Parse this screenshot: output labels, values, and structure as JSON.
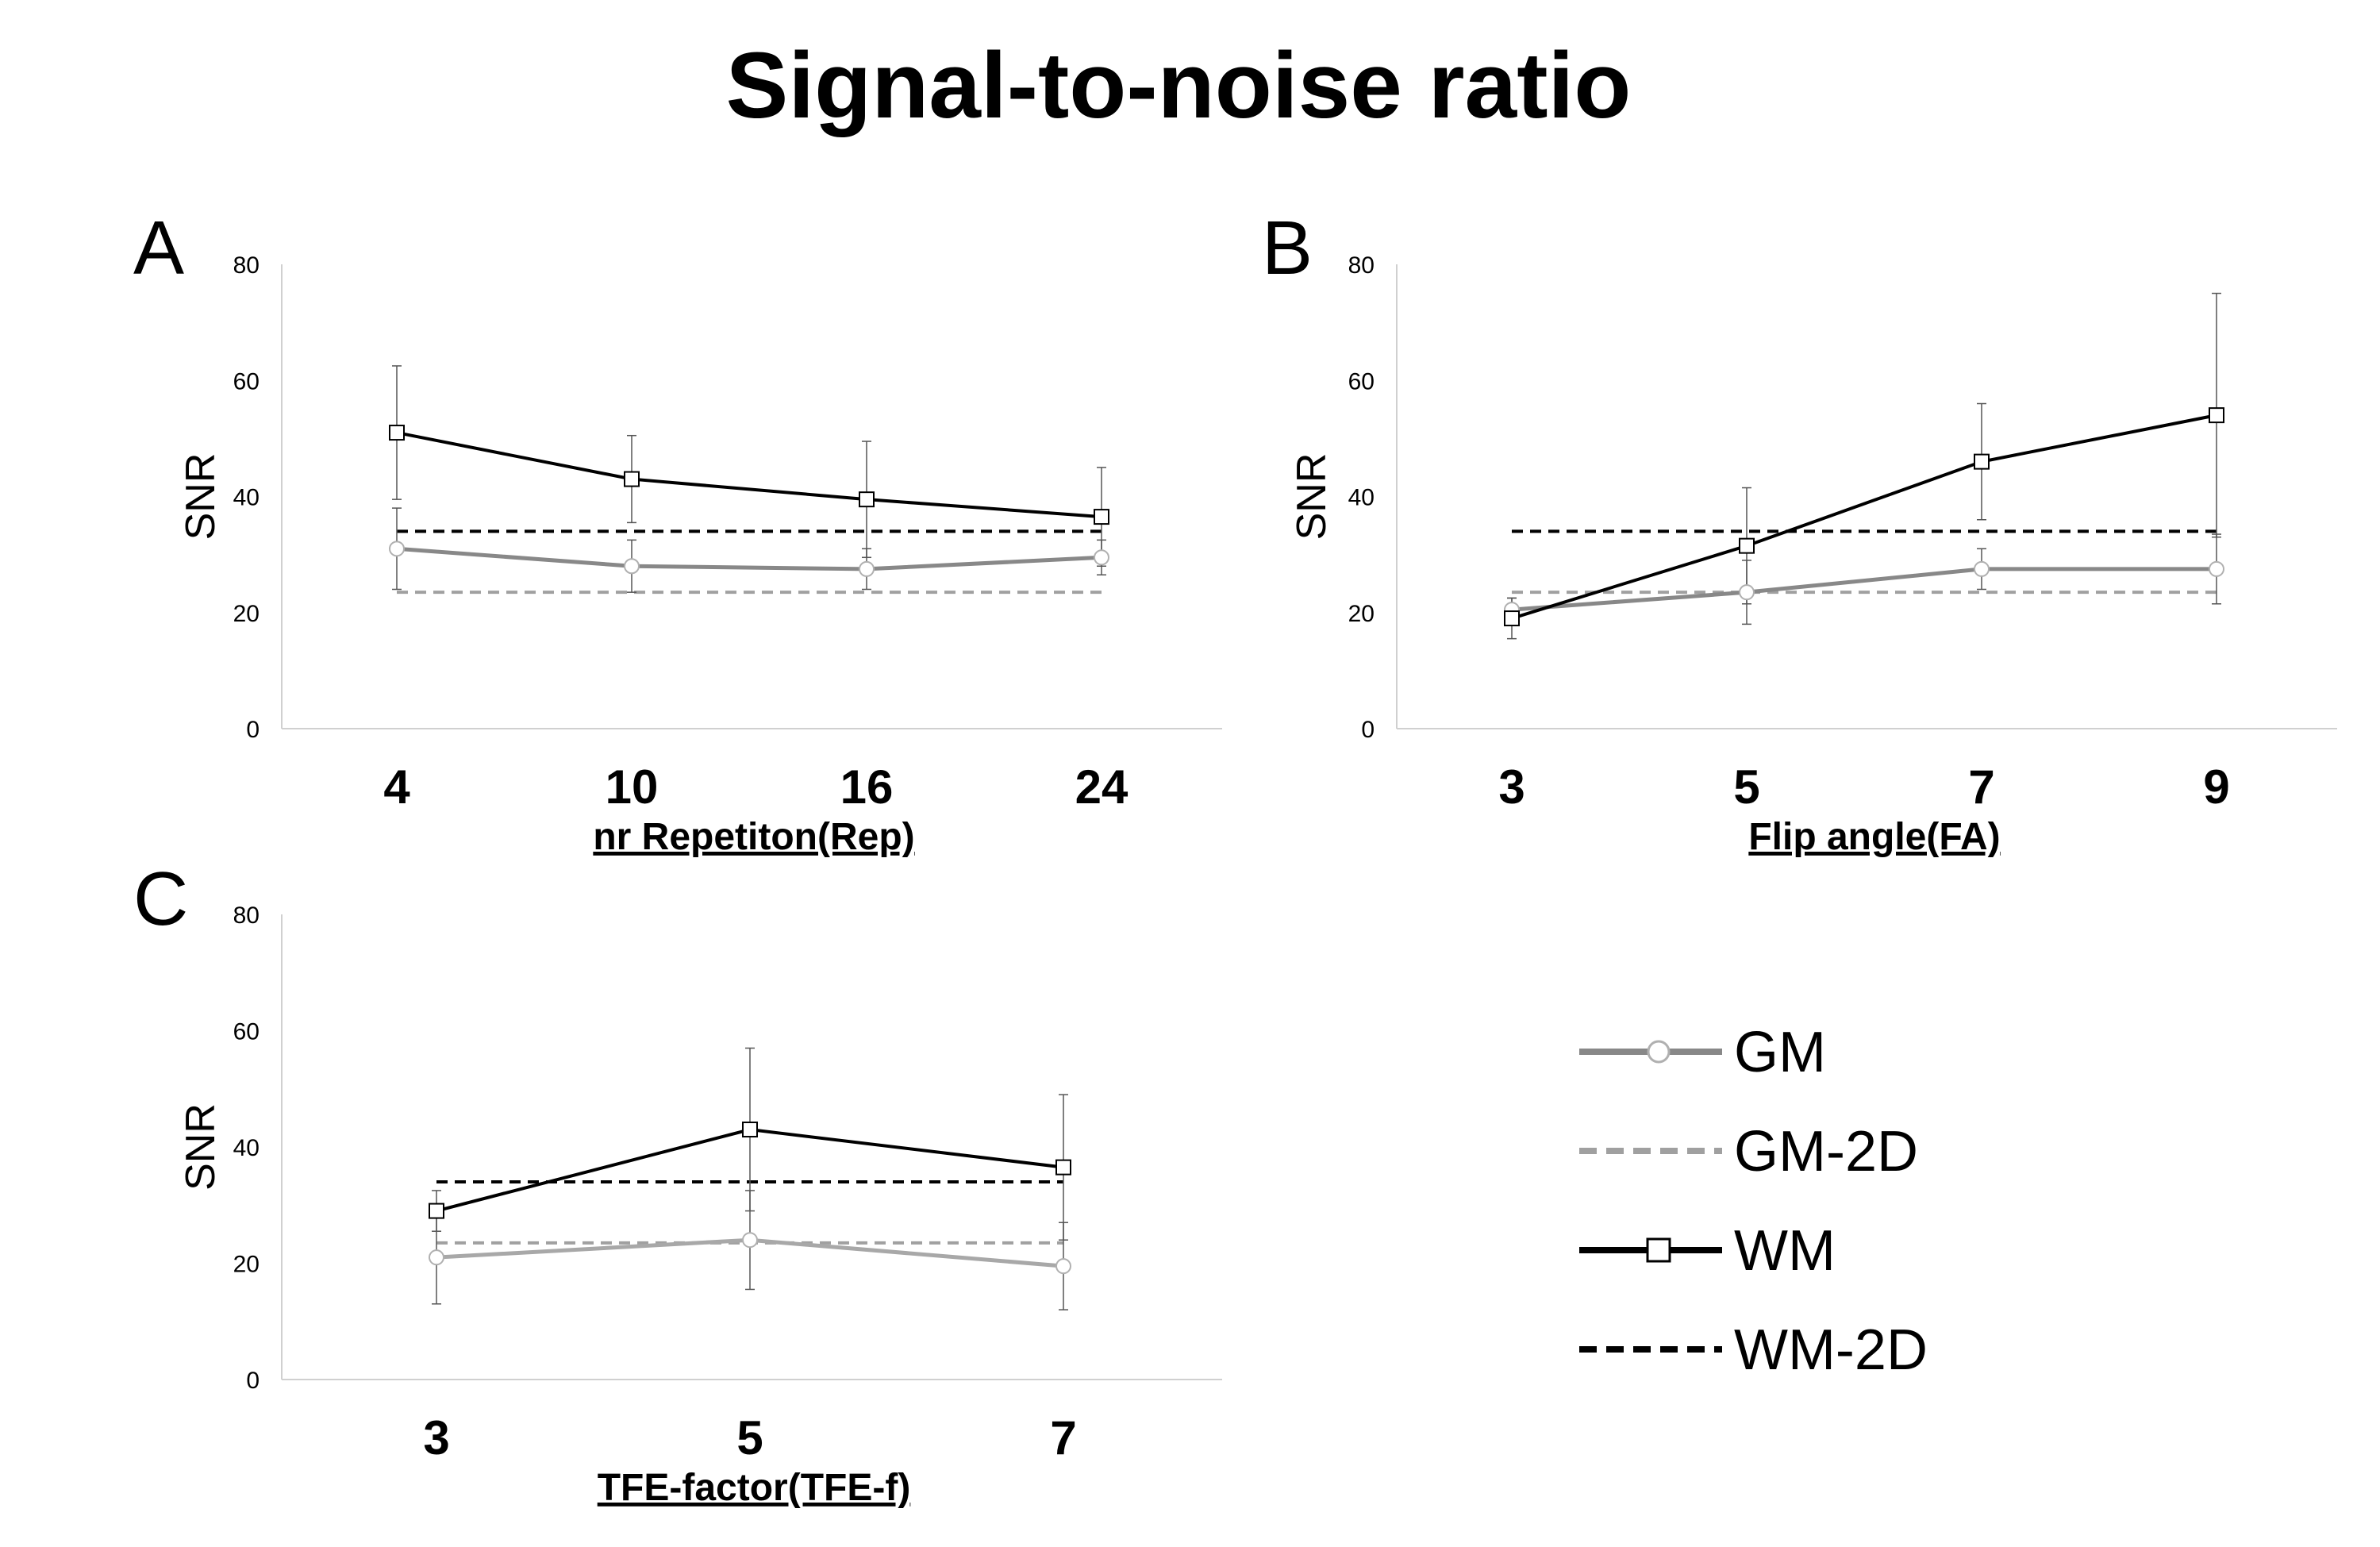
{
  "title": "Signal-to-noise ratio",
  "chart_data": [
    {
      "panel": "A",
      "type": "line",
      "ylabel": "SNR",
      "xlabel": "nr Repetiton(Rep)",
      "categories": [
        "4",
        "10",
        "16",
        "24"
      ],
      "ylim": [
        0,
        80
      ],
      "yticks": [
        "0",
        "20",
        "40",
        "60",
        "80"
      ],
      "grid": false,
      "series": [
        {
          "name": "GM",
          "values": [
            31,
            28,
            27.5,
            29.5
          ],
          "err": [
            7,
            4.5,
            3.5,
            3
          ]
        },
        {
          "name": "GM-2D",
          "values": [
            23.5,
            23.5,
            23.5,
            23.5
          ]
        },
        {
          "name": "WM",
          "values": [
            51,
            43,
            39.5,
            36.5
          ],
          "err": [
            11.5,
            7.5,
            10,
            8.5
          ]
        },
        {
          "name": "WM-2D",
          "values": [
            34,
            34,
            34,
            34
          ]
        }
      ]
    },
    {
      "panel": "B",
      "type": "line",
      "ylabel": "SNR",
      "xlabel": "Flip angle(FA)",
      "categories": [
        "3",
        "5",
        "7",
        "9"
      ],
      "ylim": [
        0,
        80
      ],
      "yticks": [
        "0",
        "20",
        "40",
        "60",
        "80"
      ],
      "grid": false,
      "series": [
        {
          "name": "GM",
          "values": [
            20.5,
            23.5,
            27.5,
            27.5
          ],
          "err": [
            2,
            5.5,
            3.5,
            6
          ]
        },
        {
          "name": "GM-2D",
          "values": [
            23.5,
            23.5,
            23.5,
            23.5
          ]
        },
        {
          "name": "WM",
          "values": [
            19,
            31.5,
            46,
            54
          ],
          "err": [
            3.5,
            10,
            10,
            21
          ]
        },
        {
          "name": "WM-2D",
          "values": [
            34,
            34,
            34,
            34
          ]
        }
      ]
    },
    {
      "panel": "C",
      "type": "line",
      "ylabel": "SNR",
      "xlabel": "TFE-factor(TFE-f)",
      "categories": [
        "3",
        "5",
        "7"
      ],
      "ylim": [
        0,
        80
      ],
      "yticks": [
        "0",
        "20",
        "40",
        "60",
        "80"
      ],
      "grid": false,
      "series": [
        {
          "name": "GM",
          "values": [
            21,
            24,
            19.5
          ],
          "err": [
            8,
            8.5,
            7.5
          ]
        },
        {
          "name": "GM-2D",
          "values": [
            23.5,
            23.5,
            23.5
          ]
        },
        {
          "name": "WM",
          "values": [
            29,
            43,
            36.5
          ],
          "err": [
            3.5,
            14,
            12.5
          ]
        },
        {
          "name": "WM-2D",
          "values": [
            34,
            34,
            34
          ]
        }
      ]
    }
  ],
  "legend": {
    "placement": "bottom-right",
    "entries": [
      {
        "label": "GM",
        "color": "#888888",
        "dash": "solid",
        "marker": "circle"
      },
      {
        "label": "GM-2D",
        "color": "#a0a0a0",
        "dash": "dashed",
        "marker": "none"
      },
      {
        "label": "WM",
        "color": "#000000",
        "dash": "solid",
        "marker": "square"
      },
      {
        "label": "WM-2D",
        "color": "#000000",
        "dash": "dashed",
        "marker": "none"
      }
    ]
  },
  "colors": {
    "GM": "#888888",
    "GM_panelC": "#a8a8a8",
    "GM_marker": "#b0b0b0",
    "GM-2D": "#a0a0a0",
    "WM": "#000000",
    "WM-2D": "#000000",
    "axis": "#d0d0d0",
    "errorbar": "#555555"
  }
}
